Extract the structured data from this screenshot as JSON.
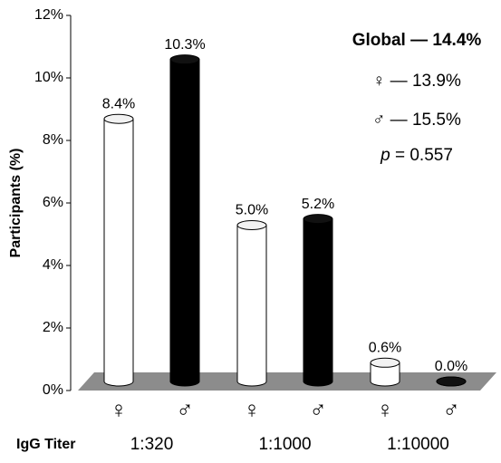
{
  "chart_data": {
    "type": "bar",
    "y_label": "Participants (%)",
    "x_label": "IgG Titer",
    "categories": [
      "1:320",
      "1:1000",
      "1:10000"
    ],
    "series": [
      {
        "name": "♀",
        "color": "#ffffff",
        "values": [
          8.4,
          5.0,
          0.6
        ],
        "value_labels": [
          "8.4%",
          "5.0%",
          "0.6%"
        ]
      },
      {
        "name": "♂",
        "color": "#000000",
        "values": [
          10.3,
          5.2,
          0.0
        ],
        "value_labels": [
          "10.3%",
          "5.2%",
          "0.0%"
        ]
      }
    ],
    "ylim": [
      0,
      12
    ],
    "yticks": [
      {
        "value": 0,
        "label": "0%"
      },
      {
        "value": 2,
        "label": "2%"
      },
      {
        "value": 4,
        "label": "4%"
      },
      {
        "value": 6,
        "label": "6%"
      },
      {
        "value": 8,
        "label": "8%"
      },
      {
        "value": 10,
        "label": "10%"
      },
      {
        "value": 12,
        "label": "12%"
      }
    ],
    "annotations": [
      "Global —",
      "14.4%",
      "♀ — 13.9%",
      "♂ — 15.5%",
      "p",
      "= 0.557"
    ]
  }
}
